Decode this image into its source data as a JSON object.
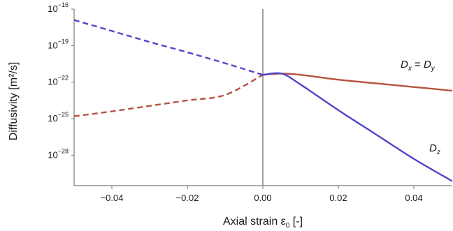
{
  "chart_data": {
    "type": "line",
    "xlabel_main": "Axial strain ε",
    "xlabel_sub": "0",
    "xlabel_unit": " [-]",
    "ylabel": "Diffusivity [m²/s]",
    "xlim": [
      -0.05,
      0.05
    ],
    "ylim_log10": [
      -30.5,
      -16
    ],
    "y_scale": "log",
    "x_ticks": [
      {
        "value": -0.04,
        "label": "−0.04"
      },
      {
        "value": -0.02,
        "label": "−0.02"
      },
      {
        "value": 0.0,
        "label": "0.00"
      },
      {
        "value": 0.02,
        "label": "0.02"
      },
      {
        "value": 0.04,
        "label": "0.04"
      }
    ],
    "y_ticks": [
      {
        "exp": -16,
        "base": "10",
        "sup": "−16"
      },
      {
        "exp": -19,
        "base": "10",
        "sup": "−19"
      },
      {
        "exp": -22,
        "base": "10",
        "sup": "−22"
      },
      {
        "exp": -25,
        "base": "10",
        "sup": "−25"
      },
      {
        "exp": -28,
        "base": "10",
        "sup": "−28"
      }
    ],
    "vertical_line_x": 0.0,
    "series": [
      {
        "name": "Dx = Dy",
        "color": "#b5523f",
        "dashed_for_negative_x": true,
        "x": [
          -0.05,
          -0.04,
          -0.03,
          -0.02,
          -0.01,
          0.0,
          0.005,
          0.01,
          0.02,
          0.03,
          0.04,
          0.05
        ],
        "log10_y": [
          -24.8,
          -24.4,
          -23.95,
          -23.5,
          -23.05,
          -21.4,
          -21.3,
          -21.4,
          -21.8,
          -22.1,
          -22.4,
          -22.7
        ]
      },
      {
        "name": "Dz",
        "color": "#5046c8",
        "dashed_for_negative_x": true,
        "x": [
          -0.05,
          -0.04,
          -0.03,
          -0.02,
          -0.01,
          0.0,
          0.005,
          0.01,
          0.02,
          0.03,
          0.04,
          0.05
        ],
        "log10_y": [
          -16.9,
          -17.8,
          -18.7,
          -19.55,
          -20.45,
          -21.4,
          -21.3,
          -22.2,
          -24.3,
          -26.3,
          -28.3,
          -30.1
        ]
      }
    ],
    "labels": {
      "dxdy": {
        "D": "D",
        "sub1": "x",
        "eq": " = ",
        "D2": "D",
        "sub2": "y"
      },
      "dz": {
        "D": "D",
        "sub": "z"
      }
    }
  }
}
